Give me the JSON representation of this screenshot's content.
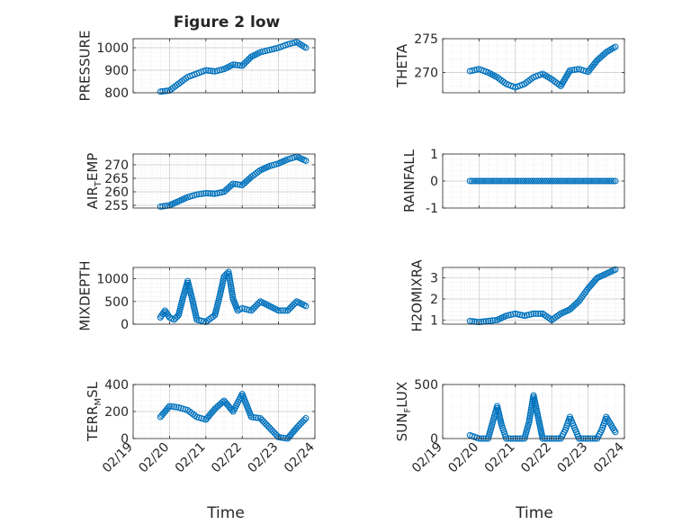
{
  "figure": {
    "title": "Figure 2 low",
    "xlabel": "Time",
    "date_tick_labels": [
      "02/19",
      "02/20",
      "02/21",
      "02/22",
      "02/23",
      "02/24"
    ],
    "marker_color": "#0072bd"
  },
  "chart_data": [
    {
      "type": "scatter",
      "ylabel": "PRESSURE",
      "ylim": [
        800,
        1040
      ],
      "yticks": [
        800,
        900,
        1000
      ],
      "grid": true,
      "x": [
        "02/19 18:00",
        "02/20 00:00",
        "02/20 06:00",
        "02/20 12:00",
        "02/20 18:00",
        "02/21 00:00",
        "02/21 06:00",
        "02/21 12:00",
        "02/21 18:00",
        "02/22 00:00",
        "02/22 06:00",
        "02/22 12:00",
        "02/22 18:00",
        "02/23 00:00",
        "02/23 06:00",
        "02/23 12:00",
        "02/23 18:00"
      ],
      "y": [
        805,
        810,
        840,
        870,
        885,
        900,
        895,
        905,
        925,
        920,
        960,
        980,
        990,
        1000,
        1015,
        1025,
        1000
      ]
    },
    {
      "type": "scatter",
      "ylabel": "THETA",
      "ylim": [
        267,
        275
      ],
      "yticks": [
        270,
        275
      ],
      "grid": true,
      "x": [
        "02/19 18:00",
        "02/20 00:00",
        "02/20 06:00",
        "02/20 12:00",
        "02/20 18:00",
        "02/21 00:00",
        "02/21 06:00",
        "02/21 12:00",
        "02/21 18:00",
        "02/22 00:00",
        "02/22 06:00",
        "02/22 12:00",
        "02/22 18:00",
        "02/23 00:00",
        "02/23 06:00",
        "02/23 12:00",
        "02/23 18:00"
      ],
      "y": [
        270.2,
        270.5,
        270.0,
        269.3,
        268.3,
        267.8,
        268.3,
        269.3,
        269.8,
        269.0,
        268.0,
        270.3,
        270.5,
        270.1,
        271.8,
        273.0,
        273.8
      ]
    },
    {
      "type": "scatter",
      "ylabel": "AIR_TEMP",
      "ylim": [
        254,
        274
      ],
      "yticks": [
        255,
        260,
        265,
        270
      ],
      "grid": true,
      "x": [
        "02/19 18:00",
        "02/20 00:00",
        "02/20 06:00",
        "02/20 12:00",
        "02/20 18:00",
        "02/21 00:00",
        "02/21 06:00",
        "02/21 12:00",
        "02/21 18:00",
        "02/22 00:00",
        "02/22 06:00",
        "02/22 12:00",
        "02/22 18:00",
        "02/23 00:00",
        "02/23 06:00",
        "02/23 12:00",
        "02/23 18:00"
      ],
      "y": [
        254.5,
        255.0,
        256.5,
        258.0,
        259.0,
        259.5,
        259.3,
        260.0,
        263.0,
        262.5,
        265.5,
        268.0,
        269.5,
        270.5,
        272.0,
        273.0,
        271.5
      ]
    },
    {
      "type": "scatter",
      "ylabel": "RAINFALL",
      "ylim": [
        -1,
        1
      ],
      "yticks": [
        -1,
        0,
        1
      ],
      "grid": true,
      "x": [
        "02/19 18:00",
        "02/20 06:00",
        "02/20 18:00",
        "02/21 06:00",
        "02/21 18:00",
        "02/22 06:00",
        "02/22 18:00",
        "02/23 06:00",
        "02/23 18:00"
      ],
      "y": [
        0,
        0,
        0,
        0,
        0,
        0,
        0,
        0,
        0
      ]
    },
    {
      "type": "scatter",
      "ylabel": "MIXDEPTH",
      "ylim": [
        0,
        1250
      ],
      "yticks": [
        0,
        500,
        1000
      ],
      "grid": true,
      "x": [
        "02/19 18:00",
        "02/19 21:00",
        "02/20 00:00",
        "02/20 03:00",
        "02/20 06:00",
        "02/20 09:00",
        "02/20 12:00",
        "02/20 15:00",
        "02/20 18:00",
        "02/21 00:00",
        "02/21 06:00",
        "02/21 09:00",
        "02/21 12:00",
        "02/21 15:00",
        "02/21 18:00",
        "02/21 21:00",
        "02/22 00:00",
        "02/22 06:00",
        "02/22 12:00",
        "02/22 18:00",
        "02/23 00:00",
        "02/23 06:00",
        "02/23 12:00",
        "02/23 18:00"
      ],
      "y": [
        150,
        300,
        150,
        100,
        200,
        600,
        950,
        550,
        100,
        50,
        200,
        600,
        1050,
        1150,
        550,
        300,
        350,
        300,
        500,
        400,
        300,
        300,
        500,
        400
      ]
    },
    {
      "type": "scatter",
      "ylabel": "H2OMIXRA",
      "ylim": [
        0.8,
        3.5
      ],
      "yticks": [
        1,
        2,
        3
      ],
      "grid": true,
      "x": [
        "02/19 18:00",
        "02/20 00:00",
        "02/20 06:00",
        "02/20 12:00",
        "02/20 18:00",
        "02/21 00:00",
        "02/21 06:00",
        "02/21 12:00",
        "02/21 18:00",
        "02/22 00:00",
        "02/22 06:00",
        "02/22 12:00",
        "02/22 18:00",
        "02/23 00:00",
        "02/23 06:00",
        "02/23 12:00",
        "02/23 18:00"
      ],
      "y": [
        0.95,
        0.9,
        0.95,
        1.0,
        1.2,
        1.3,
        1.2,
        1.3,
        1.3,
        1.0,
        1.3,
        1.5,
        1.9,
        2.5,
        3.0,
        3.2,
        3.4
      ]
    },
    {
      "type": "scatter",
      "ylabel": "TERR_MSL",
      "ylim": [
        0,
        400
      ],
      "yticks": [
        0,
        200,
        400
      ],
      "grid": true,
      "x": [
        "02/19 18:00",
        "02/20 00:00",
        "02/20 06:00",
        "02/20 12:00",
        "02/20 18:00",
        "02/21 00:00",
        "02/21 06:00",
        "02/21 12:00",
        "02/21 18:00",
        "02/22 00:00",
        "02/22 06:00",
        "02/22 12:00",
        "02/22 18:00",
        "02/23 00:00",
        "02/23 06:00",
        "02/23 12:00",
        "02/23 18:00"
      ],
      "y": [
        160,
        240,
        230,
        210,
        160,
        140,
        220,
        280,
        200,
        330,
        160,
        150,
        80,
        10,
        0,
        80,
        150
      ]
    },
    {
      "type": "scatter",
      "ylabel": "SUN_FLUX",
      "ylim": [
        0,
        500
      ],
      "yticks": [
        0,
        500
      ],
      "grid": true,
      "x": [
        "02/19 18:00",
        "02/20 00:00",
        "02/20 03:00",
        "02/20 06:00",
        "02/20 09:00",
        "02/20 12:00",
        "02/20 15:00",
        "02/20 18:00",
        "02/21 00:00",
        "02/21 06:00",
        "02/21 09:00",
        "02/21 12:00",
        "02/21 15:00",
        "02/21 18:00",
        "02/22 00:00",
        "02/22 06:00",
        "02/22 09:00",
        "02/22 12:00",
        "02/22 15:00",
        "02/22 18:00",
        "02/23 00:00",
        "02/23 06:00",
        "02/23 09:00",
        "02/23 12:00",
        "02/23 18:00"
      ],
      "y": [
        30,
        0,
        0,
        0,
        150,
        300,
        120,
        0,
        0,
        0,
        150,
        400,
        200,
        0,
        0,
        0,
        80,
        200,
        100,
        0,
        0,
        0,
        80,
        200,
        60
      ]
    }
  ]
}
